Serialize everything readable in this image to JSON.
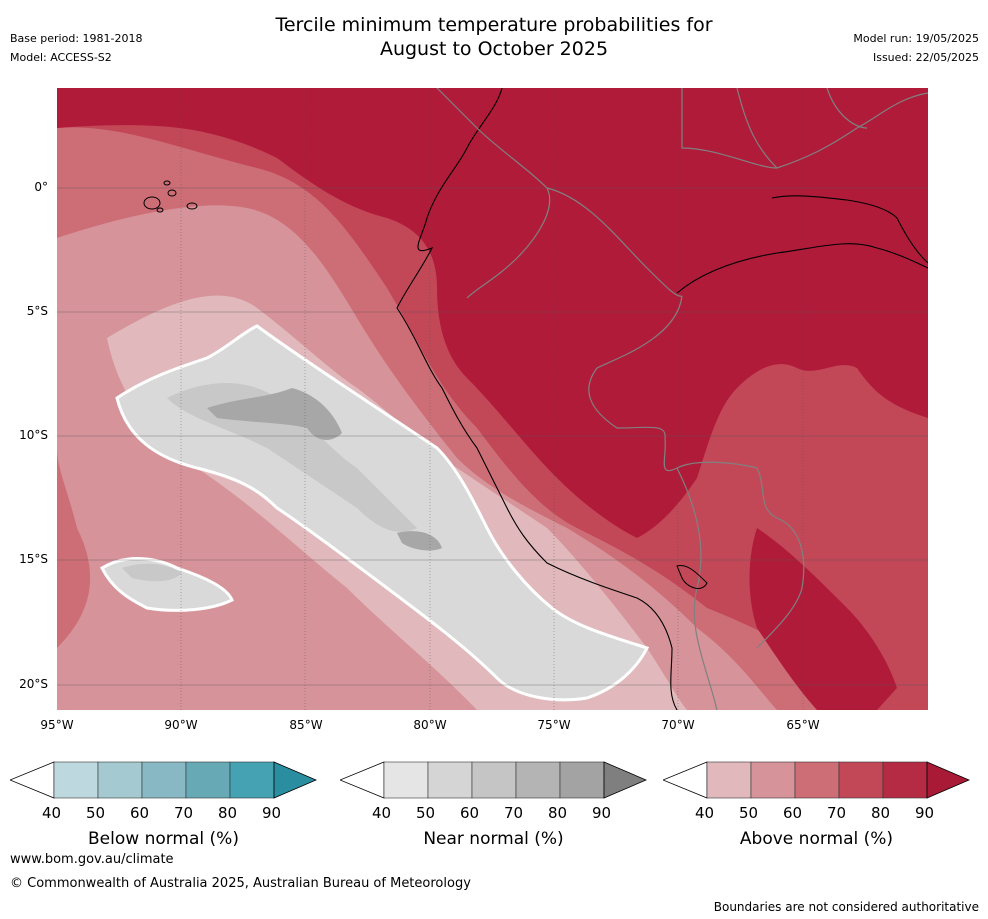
{
  "header": {
    "title_line1": "Tercile minimum temperature probabilities for",
    "title_line2": "August to October 2025",
    "base_period": "Base period: 1981-2018",
    "model": "Model: ACCESS-S2",
    "model_run": "Model run: 19/05/2025",
    "issued": "Issued: 22/05/2025"
  },
  "map": {
    "region": "Western South America and eastern Pacific",
    "lat_labels": [
      "0°",
      "5°S",
      "10°S",
      "15°S",
      "20°S"
    ],
    "lon_labels": [
      "95°W",
      "90°W",
      "85°W",
      "80°W",
      "75°W",
      "70°W",
      "65°W"
    ],
    "colors": {
      "above_90": "#b11b3a",
      "above_80": "#c24858",
      "above_70": "#cd6e77",
      "above_60": "#d6949a",
      "above_50": "#e1b9bc",
      "near_40": "#e6e6e6",
      "near_50": "#d9d9d9",
      "near_60": "#c8c8c8",
      "near_70": "#a7a7a7",
      "coastline": "#000000",
      "borders": "#808080",
      "contour": "#ffffff"
    }
  },
  "colorbars": [
    {
      "label": "Below normal (%)",
      "ticks": [
        "40",
        "50",
        "60",
        "70",
        "80",
        "90"
      ],
      "colors": [
        "#ffffff",
        "#bdd8de",
        "#a5c9d1",
        "#87b8c3",
        "#68a9b6",
        "#45a2b3",
        "#2b8ea0"
      ]
    },
    {
      "label": "Near normal (%)",
      "ticks": [
        "40",
        "50",
        "60",
        "70",
        "80",
        "90"
      ],
      "colors": [
        "#ffffff",
        "#e5e5e5",
        "#d5d5d5",
        "#c5c5c5",
        "#b4b4b4",
        "#a3a3a3",
        "#7f7f7f"
      ]
    },
    {
      "label": "Above normal (%)",
      "ticks": [
        "40",
        "50",
        "60",
        "70",
        "80",
        "90"
      ],
      "colors": [
        "#ffffff",
        "#e1b9bc",
        "#d6949a",
        "#cd6e77",
        "#c24858",
        "#b52b44",
        "#a81a36"
      ]
    }
  ],
  "footer": {
    "website": "www.bom.gov.au/climate",
    "copyright": "© Commonwealth of Australia 2025, Australian Bureau of Meteorology",
    "disclaimer": "Boundaries are not considered authoritative"
  }
}
